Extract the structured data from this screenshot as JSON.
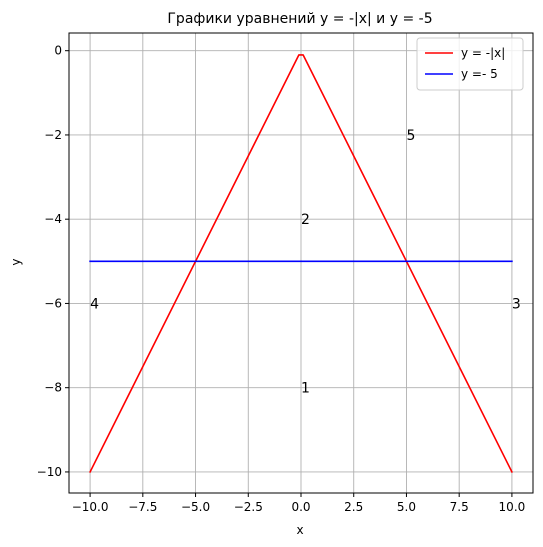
{
  "chart_data": {
    "type": "line",
    "title": "Графики уравнений y =  -|x|   и y =  -5",
    "xlabel": "x",
    "ylabel": "y",
    "xlim": [
      -11,
      11
    ],
    "ylim": [
      -10.5,
      0.42
    ],
    "grid": true,
    "legend_position": "top-right",
    "xticks": [
      -10,
      -7.5,
      -5,
      -2.5,
      0,
      2.5,
      5,
      7.5,
      10
    ],
    "xtick_labels": [
      "−10.0",
      "−7.5",
      "−5.0",
      "−2.5",
      "0.0",
      "2.5",
      "5.0",
      "7.5",
      "10.0"
    ],
    "yticks": [
      0,
      -2,
      -4,
      -6,
      -8,
      -10
    ],
    "ytick_labels": [
      "0",
      "−2",
      "−4",
      "−6",
      "−8",
      "−10"
    ],
    "series": [
      {
        "name": "y =  -|x|",
        "color": "#ff0000",
        "x": [
          -10,
          -0.1,
          0.1,
          10
        ],
        "y": [
          -10,
          -0.1,
          -0.1,
          -10
        ]
      },
      {
        "name": "y =- 5",
        "color": "#0000ff",
        "x": [
          -10,
          10
        ],
        "y": [
          -5,
          -5
        ]
      }
    ],
    "annotations": [
      {
        "text": "1",
        "x": 0,
        "y": -8
      },
      {
        "text": "2",
        "x": 0,
        "y": -4
      },
      {
        "text": "3",
        "x": 10,
        "y": -6
      },
      {
        "text": "4",
        "x": -10,
        "y": -6
      },
      {
        "text": "5",
        "x": 5,
        "y": -2
      }
    ]
  }
}
